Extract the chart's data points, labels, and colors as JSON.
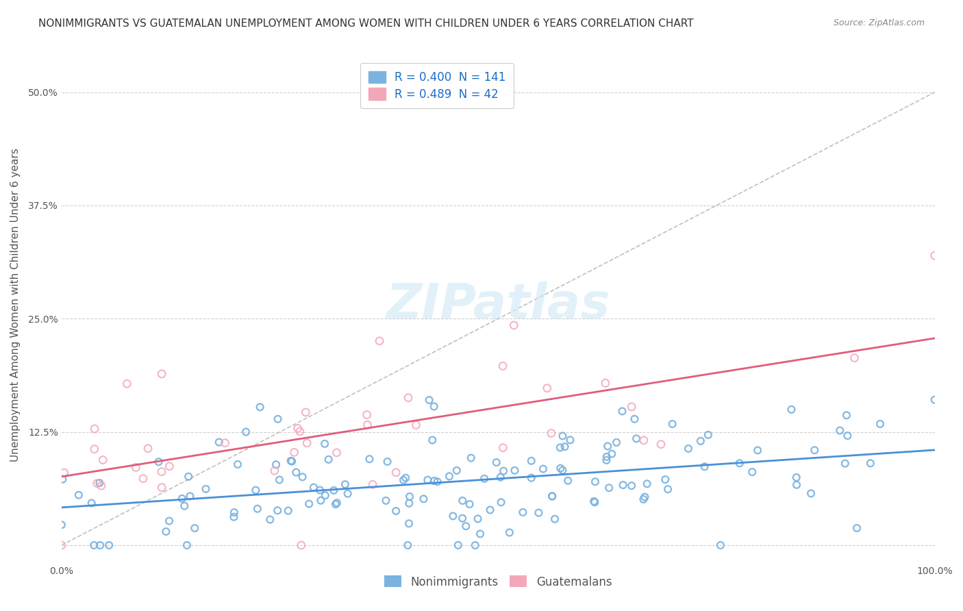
{
  "title": "NONIMMIGRANTS VS GUATEMALAN UNEMPLOYMENT AMONG WOMEN WITH CHILDREN UNDER 6 YEARS CORRELATION CHART",
  "source": "Source: ZipAtlas.com",
  "xlabel": "",
  "ylabel": "Unemployment Among Women with Children Under 6 years",
  "xlim": [
    0.0,
    1.0
  ],
  "ylim": [
    -0.02,
    0.55
  ],
  "xticks": [
    0.0,
    0.25,
    0.5,
    0.75,
    1.0
  ],
  "xticklabels": [
    "0.0%",
    "",
    "",
    "",
    "100.0%"
  ],
  "yticks": [
    0.0,
    0.125,
    0.25,
    0.375,
    0.5
  ],
  "yticklabels": [
    "",
    "12.5%",
    "25.0%",
    "37.5%",
    "50.0%"
  ],
  "nonimmigrant_color": "#7ab3e0",
  "guatemalan_color": "#f4a7b9",
  "nonimmigrant_line_color": "#4a90d9",
  "guatemalan_line_color": "#e05c7a",
  "diagonal_color": "#c0c0c0",
  "R_nonimmigrant": 0.4,
  "N_nonimmigrant": 141,
  "R_guatemalan": 0.489,
  "N_guatemalan": 42,
  "legend_labels": [
    "Nonimmigrants",
    "Guatemalans"
  ],
  "watermark": "ZIPatlas",
  "background_color": "#ffffff",
  "grid_color": "#d0d0d0",
  "seed_nonimmigrant": 42,
  "seed_guatemalan": 123,
  "title_fontsize": 11,
  "axis_label_fontsize": 11,
  "tick_fontsize": 10,
  "legend_fontsize": 12
}
